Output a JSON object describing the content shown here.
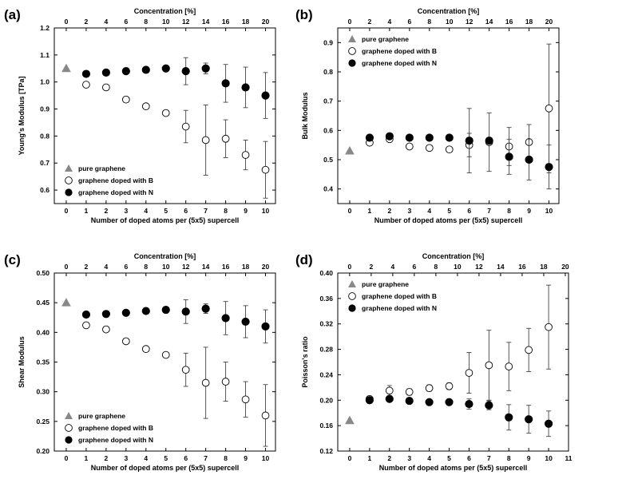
{
  "legend": {
    "pure": "pure graphene",
    "boron": "graphene doped with B",
    "nitrogen": "graphene doped with N"
  },
  "chart_data": [
    {
      "panel": "(a)",
      "type": "scatter",
      "xlabel": "Number of doped atoms per (5x5) supercell",
      "ylabel": "Young's Modulus [TPa]",
      "top_label": "Concentration [%]",
      "xlim": [
        -0.6,
        10.5
      ],
      "ylim": [
        0.55,
        1.2
      ],
      "xticks": [
        0,
        1,
        2,
        3,
        4,
        5,
        6,
        7,
        8,
        9,
        10
      ],
      "yticks": [
        0.6,
        0.7,
        0.8,
        0.9,
        1.0,
        1.1,
        1.2
      ],
      "ytick_labels": [
        "0.6",
        "0.7",
        "0.8",
        "0.9",
        "1.0",
        "1.1",
        "1.2"
      ],
      "top_ticks": [
        0,
        2,
        4,
        6,
        8,
        10,
        12,
        14,
        16,
        18,
        20
      ],
      "top_xlim": [
        -1.2,
        21
      ],
      "legend_position": "bottom-left",
      "series": [
        {
          "name": "pure graphene",
          "marker": "triangle",
          "x": [
            0
          ],
          "y": [
            1.05
          ],
          "err": [
            0
          ]
        },
        {
          "name": "graphene doped with B",
          "marker": "open-circle",
          "x": [
            1,
            2,
            3,
            4,
            5,
            6,
            7,
            8,
            9,
            10
          ],
          "y": [
            0.99,
            0.98,
            0.935,
            0.91,
            0.885,
            0.835,
            0.785,
            0.79,
            0.73,
            0.675
          ],
          "err": [
            0.006,
            0.008,
            0.008,
            0.006,
            0.006,
            0.06,
            0.13,
            0.07,
            0.055,
            0.105
          ]
        },
        {
          "name": "graphene doped with N",
          "marker": "filled-circle",
          "x": [
            1,
            2,
            3,
            4,
            5,
            6,
            7,
            8,
            9,
            10
          ],
          "y": [
            1.03,
            1.035,
            1.04,
            1.045,
            1.05,
            1.04,
            1.05,
            0.995,
            0.98,
            0.95
          ],
          "err": [
            0.004,
            0.004,
            0.004,
            0.004,
            0.004,
            0.05,
            0.02,
            0.07,
            0.075,
            0.085
          ]
        }
      ]
    },
    {
      "panel": "(b)",
      "type": "scatter",
      "xlabel": "Number of doped atoms per (5x5) supercell",
      "ylabel": "Bulk Modulus",
      "top_label": "Concentration [%]",
      "xlim": [
        -0.6,
        10.5
      ],
      "ylim": [
        0.35,
        0.95
      ],
      "xticks": [
        0,
        1,
        2,
        3,
        4,
        5,
        6,
        7,
        8,
        9,
        10
      ],
      "yticks": [
        0.4,
        0.5,
        0.6,
        0.7,
        0.8,
        0.9
      ],
      "ytick_labels": [
        "0.4",
        "0.5",
        "0.6",
        "0.7",
        "0.8",
        "0.9"
      ],
      "top_ticks": [
        0,
        2,
        4,
        6,
        8,
        10,
        12,
        14,
        16,
        18,
        20
      ],
      "top_xlim": [
        -1.2,
        21
      ],
      "legend_position": "top-left",
      "series": [
        {
          "name": "pure graphene",
          "marker": "triangle",
          "x": [
            0
          ],
          "y": [
            0.53
          ],
          "err": [
            0
          ]
        },
        {
          "name": "graphene doped with B",
          "marker": "open-circle",
          "x": [
            1,
            2,
            3,
            4,
            5,
            6,
            7,
            8,
            9,
            10
          ],
          "y": [
            0.558,
            0.57,
            0.545,
            0.54,
            0.535,
            0.55,
            0.56,
            0.545,
            0.56,
            0.675
          ],
          "err": [
            0.006,
            0.008,
            0.008,
            0.006,
            0.006,
            0.04,
            0.1,
            0.065,
            0.06,
            0.22
          ]
        },
        {
          "name": "graphene doped with N",
          "marker": "filled-circle",
          "x": [
            1,
            2,
            3,
            4,
            5,
            6,
            7,
            8,
            9,
            10
          ],
          "y": [
            0.575,
            0.58,
            0.575,
            0.575,
            0.575,
            0.565,
            0.565,
            0.51,
            0.5,
            0.475
          ],
          "err": [
            0.004,
            0.004,
            0.004,
            0.004,
            0.004,
            0.11,
            0.005,
            0.06,
            0.07,
            0.075
          ]
        }
      ]
    },
    {
      "panel": "(c)",
      "type": "scatter",
      "xlabel": "Number of doped atoms per (5x5) supercell",
      "ylabel": "Shear Modulus",
      "top_label": "Concentration [%]",
      "xlim": [
        -0.6,
        10.5
      ],
      "ylim": [
        0.2,
        0.5
      ],
      "xticks": [
        0,
        1,
        2,
        3,
        4,
        5,
        6,
        7,
        8,
        9,
        10
      ],
      "yticks": [
        0.2,
        0.25,
        0.3,
        0.35,
        0.4,
        0.45,
        0.5
      ],
      "ytick_labels": [
        "0.20",
        "0.25",
        "0.30",
        "0.35",
        "0.40",
        "0.45",
        "0.50"
      ],
      "top_ticks": [
        0,
        2,
        4,
        6,
        8,
        10,
        12,
        14,
        16,
        18,
        20
      ],
      "top_xlim": [
        -1.2,
        21
      ],
      "legend_position": "bottom-left",
      "series": [
        {
          "name": "pure graphene",
          "marker": "triangle",
          "x": [
            0
          ],
          "y": [
            0.45
          ],
          "err": [
            0
          ]
        },
        {
          "name": "graphene doped with B",
          "marker": "open-circle",
          "x": [
            1,
            2,
            3,
            4,
            5,
            6,
            7,
            8,
            9,
            10
          ],
          "y": [
            0.412,
            0.405,
            0.385,
            0.372,
            0.362,
            0.337,
            0.315,
            0.317,
            0.287,
            0.26
          ],
          "err": [
            0.003,
            0.004,
            0.004,
            0.003,
            0.003,
            0.028,
            0.06,
            0.033,
            0.03,
            0.052
          ]
        },
        {
          "name": "graphene doped with N",
          "marker": "filled-circle",
          "x": [
            1,
            2,
            3,
            4,
            5,
            6,
            7,
            8,
            9,
            10
          ],
          "y": [
            0.43,
            0.431,
            0.433,
            0.436,
            0.438,
            0.435,
            0.44,
            0.424,
            0.418,
            0.41
          ],
          "err": [
            0.002,
            0.002,
            0.002,
            0.002,
            0.002,
            0.02,
            0.008,
            0.028,
            0.027,
            0.028
          ]
        }
      ]
    },
    {
      "panel": "(d)",
      "type": "scatter",
      "xlabel": "Number of doped atoms per (5x5) supercell",
      "ylabel": "Poisson's ratio",
      "top_label": "Concentration [%]",
      "xlim": [
        -0.6,
        11
      ],
      "ylim": [
        0.12,
        0.4
      ],
      "xticks": [
        0,
        1,
        2,
        3,
        4,
        5,
        6,
        7,
        8,
        9,
        10,
        11
      ],
      "yticks": [
        0.12,
        0.16,
        0.2,
        0.24,
        0.28,
        0.32,
        0.36,
        0.4
      ],
      "ytick_labels": [
        "0.12",
        "0.16",
        "0.20",
        "0.24",
        "0.28",
        "0.32",
        "0.36",
        "0.40"
      ],
      "top_ticks": [
        0,
        2,
        4,
        6,
        8,
        10,
        12,
        14,
        16,
        18,
        20
      ],
      "top_xlim": [
        -1.1,
        20.3
      ],
      "legend_position": "top-left",
      "series": [
        {
          "name": "pure graphene",
          "marker": "triangle",
          "x": [
            0
          ],
          "y": [
            0.168
          ],
          "err": [
            0
          ]
        },
        {
          "name": "graphene doped with B",
          "marker": "open-circle",
          "x": [
            1,
            2,
            3,
            4,
            5,
            6,
            7,
            8,
            9,
            10
          ],
          "y": [
            0.202,
            0.215,
            0.213,
            0.219,
            0.222,
            0.243,
            0.255,
            0.253,
            0.279,
            0.315
          ],
          "err": [
            0.003,
            0.008,
            0.005,
            0.005,
            0.005,
            0.032,
            0.055,
            0.038,
            0.034,
            0.066
          ]
        },
        {
          "name": "graphene doped with N",
          "marker": "filled-circle",
          "x": [
            1,
            2,
            3,
            4,
            5,
            6,
            7,
            8,
            9,
            10
          ],
          "y": [
            0.2,
            0.202,
            0.199,
            0.197,
            0.197,
            0.194,
            0.192,
            0.173,
            0.17,
            0.163
          ],
          "err": [
            0.003,
            0.003,
            0.002,
            0.002,
            0.002,
            0.008,
            0.007,
            0.02,
            0.022,
            0.02
          ]
        }
      ]
    }
  ]
}
